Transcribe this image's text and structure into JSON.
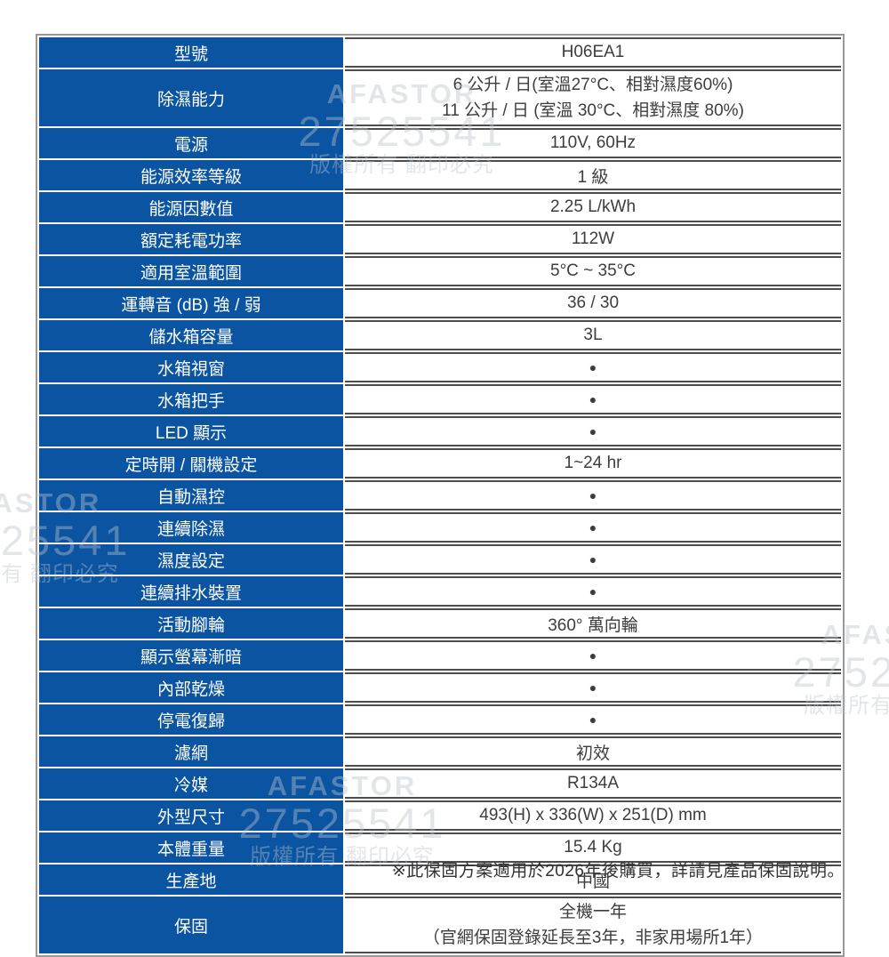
{
  "page": {
    "note": "※此保固方案適用於2026年後購買，詳請見產品保固說明。"
  },
  "colors": {
    "label_bg": "#0a54a1",
    "label_text": "#ffffff",
    "value_text": "#3d3d3d",
    "row_border": "#4d4d4d",
    "outer_border": "#9a9a9a",
    "watermark": "#ebebe9"
  },
  "watermark": {
    "brand": "AFASTOR",
    "number": "27525541",
    "notice": "版權所有 翻印必究"
  },
  "table": {
    "rows": [
      {
        "label": "型號",
        "value": "H06EA1"
      },
      {
        "label": "除濕能力",
        "value_lines": [
          "6 公升 / 日(室溫27°C、相對濕度60%)",
          "11 公升 / 日 (室溫 30°C、相對濕度 80%)"
        ],
        "tall": true
      },
      {
        "label": "電源",
        "value": "110V, 60Hz"
      },
      {
        "label": "能源效率等級",
        "value": "1 級"
      },
      {
        "label": "能源因數值",
        "value": "2.25 L/kWh"
      },
      {
        "label": "額定耗電功率",
        "value": "112W"
      },
      {
        "label": "適用室溫範圍",
        "value": "5°C ~ 35°C"
      },
      {
        "label": "運轉音 (dB) 強 / 弱",
        "value": "36 / 30"
      },
      {
        "label": "儲水箱容量",
        "value": "3L"
      },
      {
        "label": "水箱視窗",
        "value": "●",
        "dot": true
      },
      {
        "label": "水箱把手",
        "value": "●",
        "dot": true
      },
      {
        "label": "LED 顯示",
        "value": "●",
        "dot": true
      },
      {
        "label": "定時開 / 關機設定",
        "value": "1~24 hr"
      },
      {
        "label": "自動濕控",
        "value": "●",
        "dot": true
      },
      {
        "label": "連續除濕",
        "value": "●",
        "dot": true
      },
      {
        "label": "濕度設定",
        "value": "●",
        "dot": true
      },
      {
        "label": "連續排水裝置",
        "value": "●",
        "dot": true
      },
      {
        "label": "活動腳輪",
        "value": "360° 萬向輪"
      },
      {
        "label": "顯示螢幕漸暗",
        "value": "●",
        "dot": true
      },
      {
        "label": "內部乾燥",
        "value": "●",
        "dot": true
      },
      {
        "label": "停電復歸",
        "value": "●",
        "dot": true
      },
      {
        "label": "濾網",
        "value": "初效"
      },
      {
        "label": "冷媒",
        "value": "R134A"
      },
      {
        "label": "外型尺寸",
        "value": "493(H) x 336(W) x 251(D) mm"
      },
      {
        "label": "本體重量",
        "value": "15.4 Kg"
      },
      {
        "label": "生產地",
        "value": "中國"
      },
      {
        "label": "保固",
        "value_lines": [
          "全機一年",
          "（官網保固登錄延長至3年，非家用場所1年）"
        ],
        "tall": true
      }
    ]
  }
}
